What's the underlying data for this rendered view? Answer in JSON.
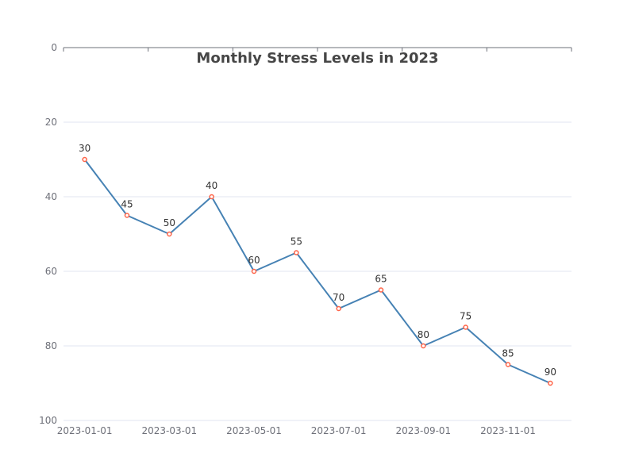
{
  "chart_data": {
    "type": "line",
    "title": "Monthly Stress Levels in 2023",
    "xlabel": "",
    "ylabel": "",
    "x": [
      "2023-01-01",
      "2023-02-01",
      "2023-03-01",
      "2023-04-01",
      "2023-05-01",
      "2023-06-01",
      "2023-07-01",
      "2023-08-01",
      "2023-09-01",
      "2023-10-01",
      "2023-11-01",
      "2023-12-01"
    ],
    "x_tick_labels": [
      "2023-01-01",
      "2023-03-01",
      "2023-05-01",
      "2023-07-01",
      "2023-09-01",
      "2023-11-01"
    ],
    "series": [
      {
        "values": [
          30,
          45,
          50,
          40,
          60,
          55,
          70,
          65,
          80,
          75,
          85,
          90
        ]
      }
    ],
    "ylim": [
      0,
      100
    ],
    "y_inverted": true,
    "y_ticks": [
      0,
      20,
      40,
      60,
      80,
      100
    ],
    "x_axis_position": "top",
    "grid": true,
    "colors": {
      "line": "#4682b4",
      "marker": "#ff6347"
    }
  }
}
